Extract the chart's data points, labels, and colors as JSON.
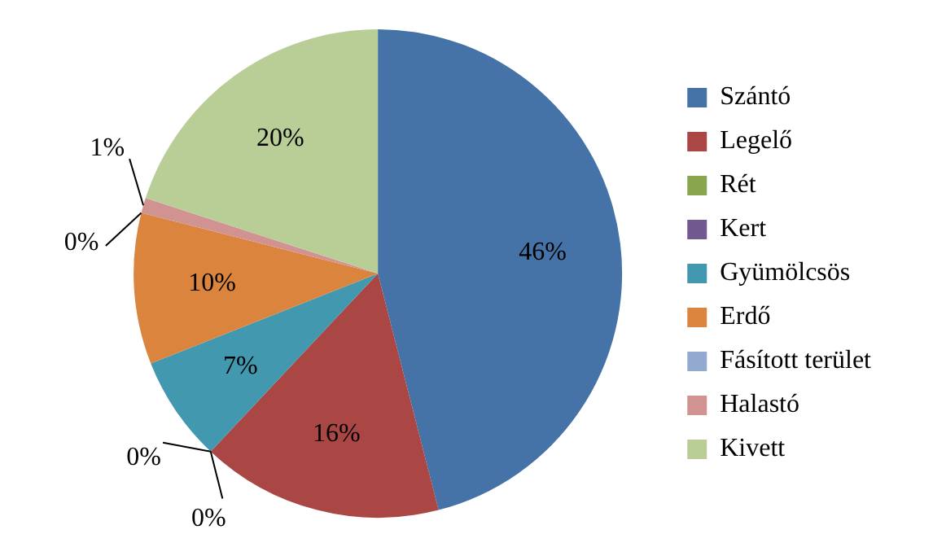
{
  "chart_data": {
    "type": "pie",
    "categories": [
      "Szántó",
      "Legelő",
      "Rét",
      "Kert",
      "Gyümölcsös",
      "Erdő",
      "Fásított terület",
      "Halastó",
      "Kivett"
    ],
    "values": [
      46,
      16,
      0,
      0,
      7,
      10,
      0,
      1,
      20
    ],
    "colors": [
      "#4572a7",
      "#aa4643",
      "#89a54e",
      "#71588f",
      "#4198af",
      "#db843d",
      "#93a9cf",
      "#d19392",
      "#b9cd96"
    ],
    "value_labels": [
      "46%",
      "16%",
      "0%",
      "0%",
      "7%",
      "10%",
      "0%",
      "1%",
      "20%"
    ],
    "legend": "right"
  }
}
